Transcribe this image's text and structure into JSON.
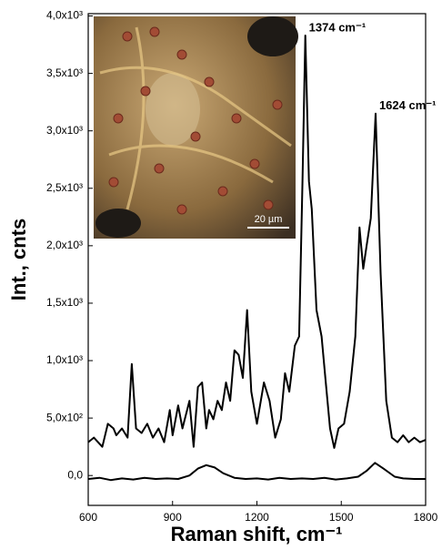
{
  "chart_data": {
    "type": "line",
    "xlabel": "Raman shift, cm⁻¹",
    "ylabel": "Int., cnts",
    "xlim": [
      600,
      1800
    ],
    "xticks": [
      600,
      900,
      1200,
      1500,
      1800
    ],
    "ylim": [
      -260,
      4020
    ],
    "yticks": [
      {
        "value": 0,
        "label": "0,0"
      },
      {
        "value": 500,
        "label": "5,0x10²"
      },
      {
        "value": 1000,
        "label": "1,0x10³"
      },
      {
        "value": 1500,
        "label": "1,5x10³"
      },
      {
        "value": 2000,
        "label": "2,0x10³"
      },
      {
        "value": 2500,
        "label": "2,5x10³"
      },
      {
        "value": 3000,
        "label": "3,0x10³"
      },
      {
        "value": 3500,
        "label": "3,5x10³"
      },
      {
        "value": 4000,
        "label": "4,0x10³"
      }
    ],
    "series": [
      {
        "color": "#000000",
        "x": [
          600,
          620,
          650,
          670,
          690,
          700,
          720,
          740,
          755,
          770,
          790,
          810,
          830,
          850,
          870,
          890,
          900,
          920,
          935,
          960,
          975,
          990,
          1005,
          1020,
          1030,
          1045,
          1060,
          1075,
          1090,
          1105,
          1120,
          1135,
          1150,
          1165,
          1180,
          1200,
          1225,
          1245,
          1265,
          1285,
          1300,
          1315,
          1335,
          1350,
          1362,
          1372,
          1385,
          1395,
          1412,
          1430,
          1445,
          1460,
          1475,
          1490,
          1510,
          1530,
          1550,
          1565,
          1578,
          1590,
          1605,
          1622,
          1640,
          1660,
          1680,
          1700,
          1720,
          1740,
          1760,
          1780,
          1800
        ],
        "values": [
          290,
          330,
          250,
          450,
          410,
          350,
          410,
          330,
          970,
          410,
          370,
          450,
          330,
          410,
          290,
          570,
          350,
          610,
          410,
          650,
          250,
          770,
          810,
          410,
          570,
          490,
          650,
          570,
          810,
          650,
          1090,
          1050,
          850,
          1440,
          730,
          450,
          810,
          650,
          330,
          490,
          890,
          730,
          1130,
          1210,
          2560,
          3830,
          2560,
          2320,
          1440,
          1210,
          810,
          410,
          240,
          410,
          450,
          730,
          1210,
          2160,
          1800,
          2000,
          2240,
          3150,
          1760,
          650,
          330,
          290,
          350,
          290,
          330,
          290,
          310
        ]
      },
      {
        "color": "#000000",
        "x": [
          600,
          640,
          680,
          720,
          760,
          800,
          840,
          880,
          920,
          960,
          990,
          1020,
          1050,
          1080,
          1120,
          1160,
          1200,
          1240,
          1280,
          1320,
          1360,
          1400,
          1440,
          1480,
          1520,
          1560,
          1590,
          1620,
          1650,
          1690,
          1720,
          1760,
          1800
        ],
        "values": [
          -30,
          -20,
          -40,
          -25,
          -35,
          -20,
          -30,
          -25,
          -30,
          0,
          60,
          90,
          70,
          20,
          -20,
          -30,
          -25,
          -35,
          -20,
          -30,
          -25,
          -30,
          -20,
          -35,
          -25,
          -10,
          40,
          110,
          60,
          -10,
          -25,
          -30,
          -30
        ]
      }
    ],
    "annotations": [
      {
        "text": "1374 cm⁻¹",
        "x": 1372,
        "y": 3830
      },
      {
        "text": "1624 cm⁻¹",
        "x": 1622,
        "y": 3150
      }
    ],
    "inset_scale_label": "20 µm"
  }
}
